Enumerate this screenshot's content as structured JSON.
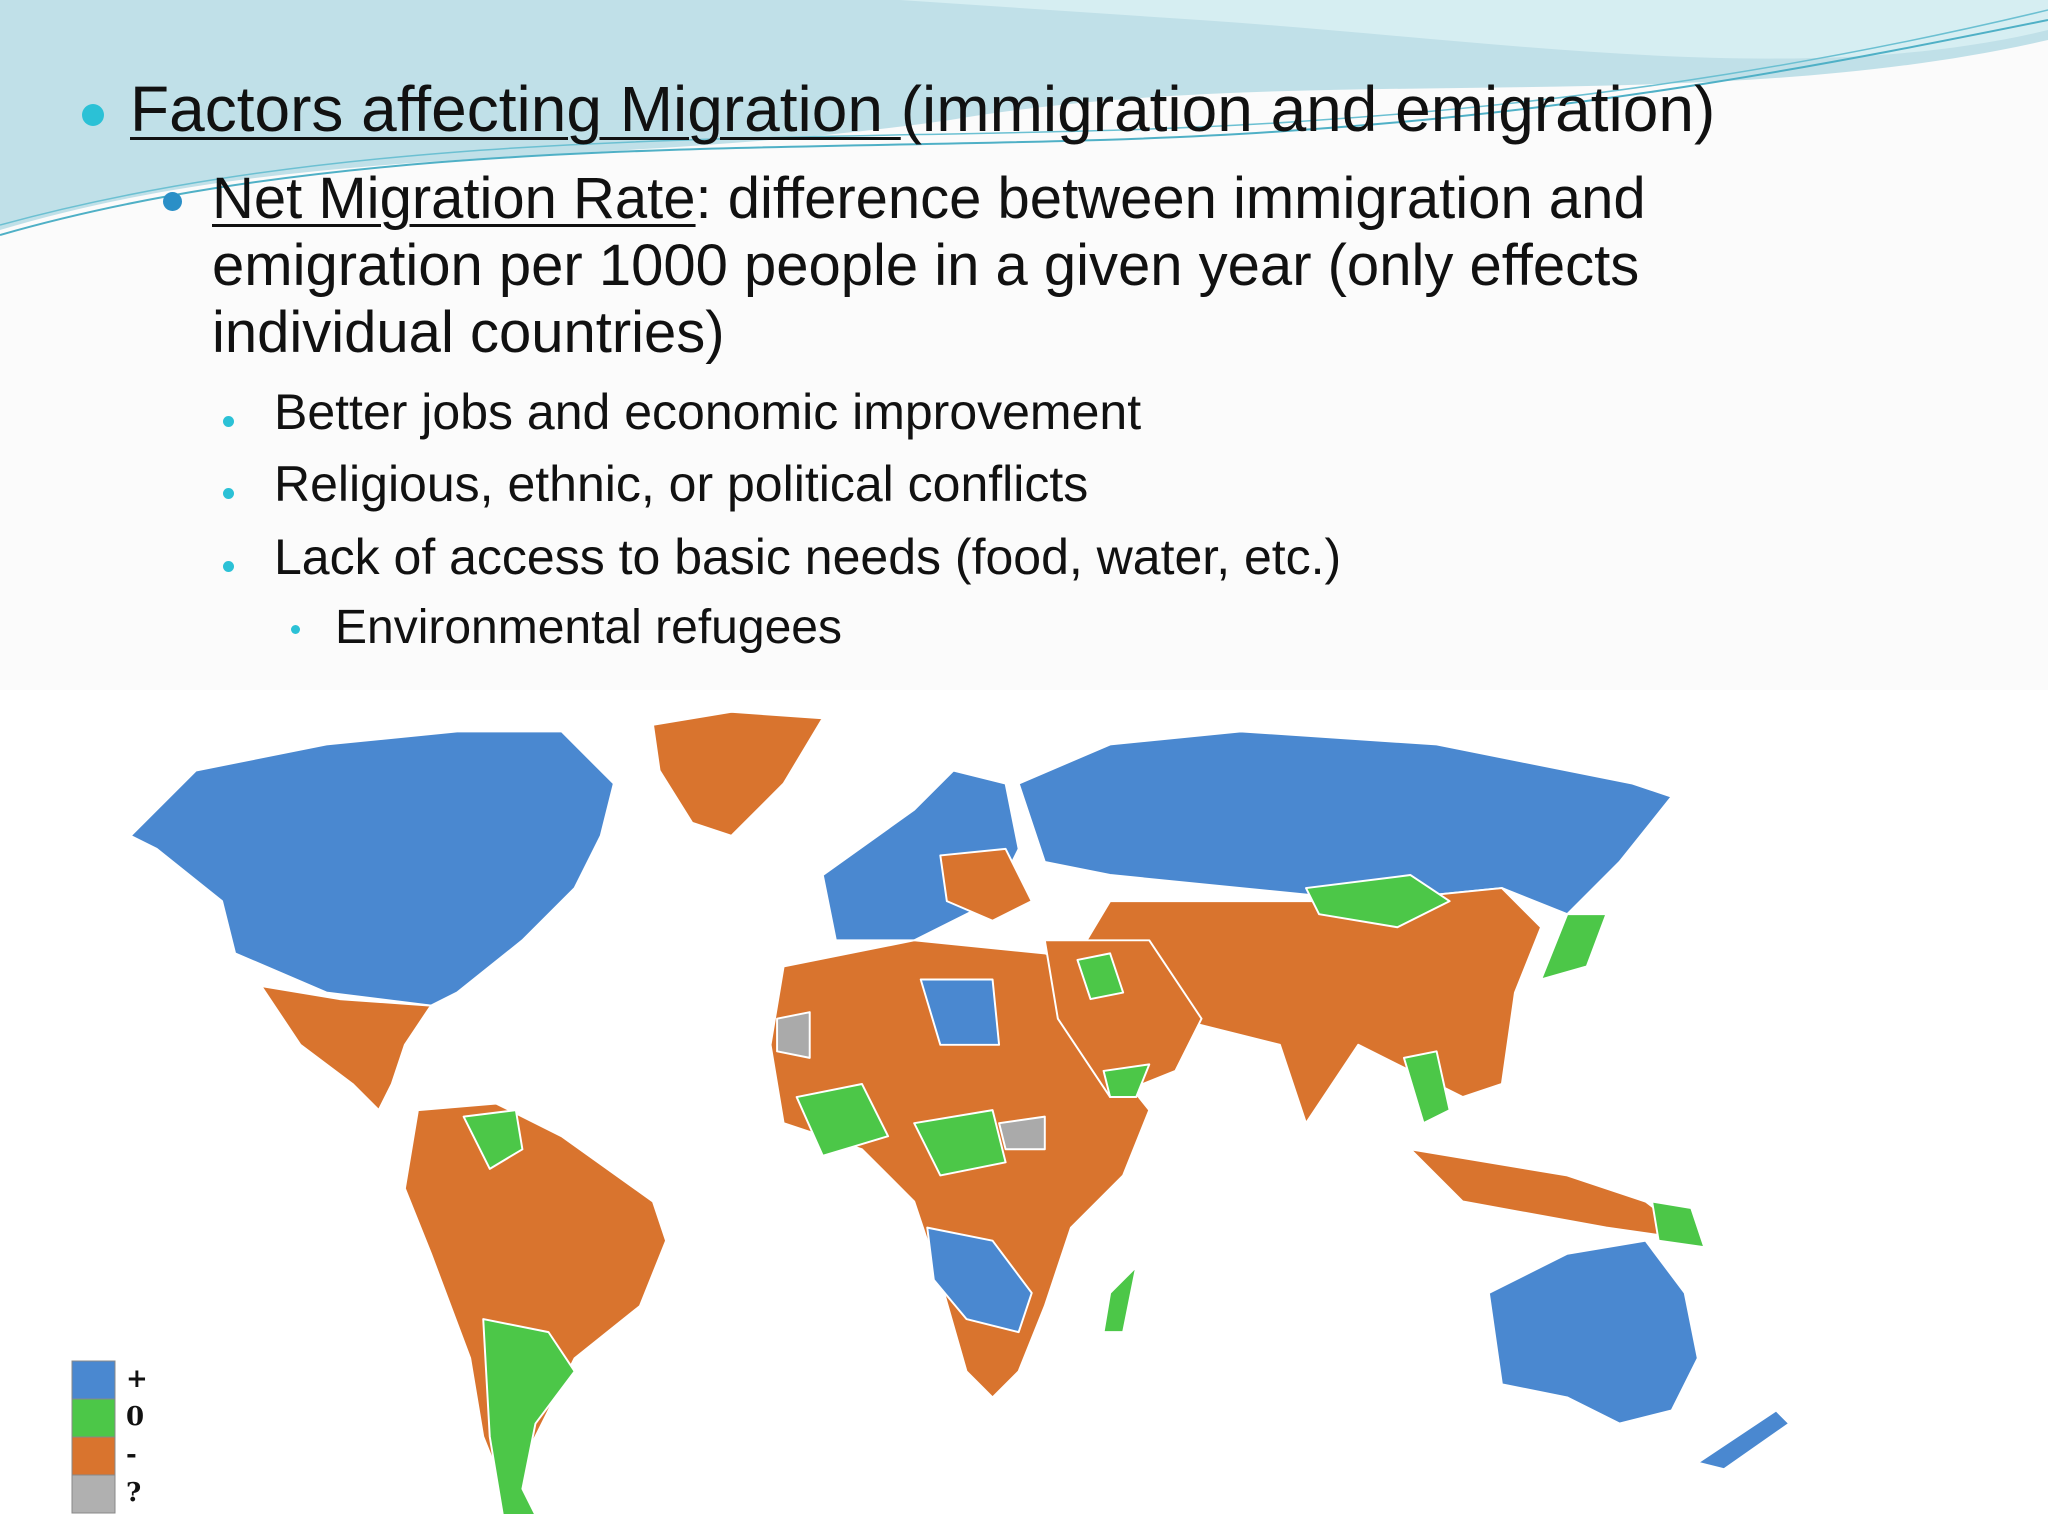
{
  "bullets": [
    {
      "underlined": "Factors affecting Migration ",
      "rest": "(immigration and emigration)"
    },
    {
      "underlined": "Net Migration Rate",
      "rest": ": difference between immigration and emigration per 1000 people in a given year (only effects individual countries)"
    }
  ],
  "sub_bullets": [
    "Better jobs and economic improvement",
    "Religious, ethnic, or political conflicts",
    "Lack of access to basic needs (food, water, etc.)"
  ],
  "sub_sub_bullets": [
    "Environmental refugees"
  ],
  "legend": [
    "+",
    "0",
    "-",
    "?"
  ]
}
